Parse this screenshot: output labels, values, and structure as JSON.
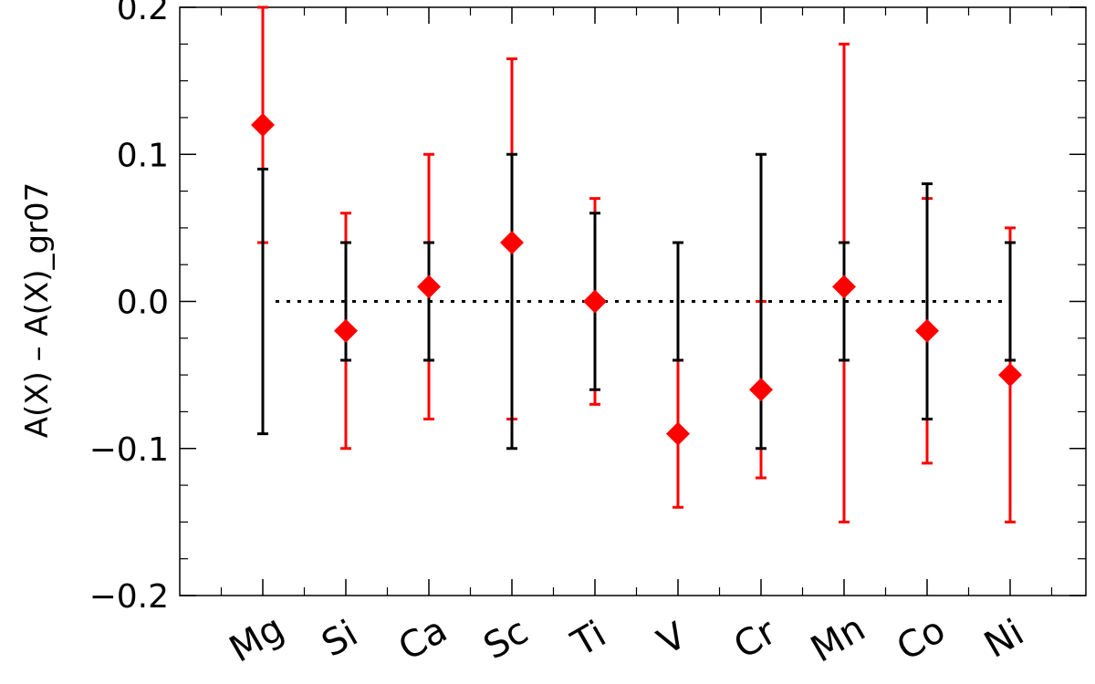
{
  "chart_data": {
    "type": "scatter",
    "title": "",
    "xlabel": "",
    "ylabel": "A(X) – A(X)_gr07",
    "ylim": [
      -0.2,
      0.2
    ],
    "yticks": [
      "0.2",
      "0.1",
      "0.0",
      "−0.1",
      "−0.2"
    ],
    "categories": [
      "Mg",
      "Si",
      "Ca",
      "Sc",
      "Ti",
      "V",
      "Cr",
      "Mn",
      "Co",
      "Ni"
    ],
    "reference_line": {
      "y": 0.0,
      "style": "dotted"
    },
    "series": [
      {
        "values": [
          0.12,
          -0.02,
          0.01,
          0.04,
          0.0,
          -0.09,
          -0.06,
          0.01,
          -0.02,
          -0.05
        ],
        "color": "#ff0000",
        "marker": "diamond",
        "err_low": [
          0.04,
          -0.1,
          -0.08,
          -0.08,
          -0.07,
          -0.14,
          -0.12,
          -0.15,
          -0.11,
          -0.15
        ],
        "err_high": [
          0.2,
          0.06,
          0.1,
          0.165,
          0.07,
          -0.04,
          0.0,
          0.175,
          0.07,
          0.05
        ]
      },
      {
        "values": [
          0.0,
          0.0,
          0.0,
          0.0,
          0.0,
          0.0,
          0.0,
          0.0,
          0.0,
          0.0
        ],
        "color": "#000000",
        "marker": "none",
        "err_low": [
          -0.09,
          -0.04,
          -0.04,
          -0.1,
          -0.06,
          -0.04,
          -0.1,
          -0.04,
          -0.08,
          -0.04
        ],
        "err_high": [
          0.09,
          0.04,
          0.04,
          0.1,
          0.06,
          0.04,
          0.1,
          0.04,
          0.08,
          0.04
        ]
      }
    ],
    "grid": false
  }
}
